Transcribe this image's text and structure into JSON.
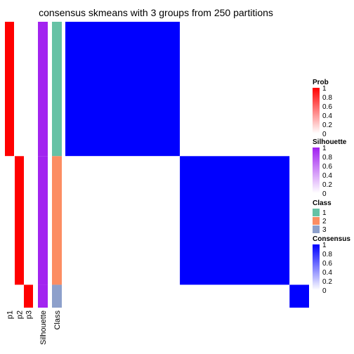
{
  "chart_data": {
    "type": "heatmap",
    "title": "consensus skmeans with 3 groups from 250 partitions",
    "annotation_columns": [
      "p1",
      "p2",
      "p3",
      "Silhouette",
      "Class"
    ],
    "groups": [
      {
        "class": 1,
        "p1": 1.0,
        "p2": 0.0,
        "p3": 0.0,
        "silhouette": 0.98,
        "size_fraction": 0.47
      },
      {
        "class": 2,
        "p1": 0.0,
        "p2": 1.0,
        "p3": 0.0,
        "silhouette": 0.98,
        "size_fraction": 0.45
      },
      {
        "class": 3,
        "p1": 0.0,
        "p2": 0.0,
        "p3": 1.0,
        "silhouette": 0.98,
        "size_fraction": 0.08
      }
    ],
    "consensus_within": 1.0,
    "consensus_between": 0.0,
    "class_colors": {
      "1": "#66C2A5",
      "2": "#FC8D62",
      "3": "#8DA0CB"
    },
    "legends": [
      {
        "title": "Prob",
        "ticks": [
          "1",
          "0.8",
          "0.6",
          "0.4",
          "0.2",
          "0"
        ],
        "low": "#ffffff",
        "high": "#ff0000"
      },
      {
        "title": "Silhouette",
        "ticks": [
          "1",
          "0.8",
          "0.6",
          "0.4",
          "0.2",
          "0"
        ],
        "low": "#ffffff",
        "high": "#a020f0"
      },
      {
        "title": "Class",
        "items": [
          "1",
          "2",
          "3"
        ]
      },
      {
        "title": "Consensus",
        "ticks": [
          "1",
          "0.8",
          "0.6",
          "0.4",
          "0.2",
          "0"
        ],
        "low": "#ffffff",
        "high": "#0000ff"
      }
    ]
  }
}
